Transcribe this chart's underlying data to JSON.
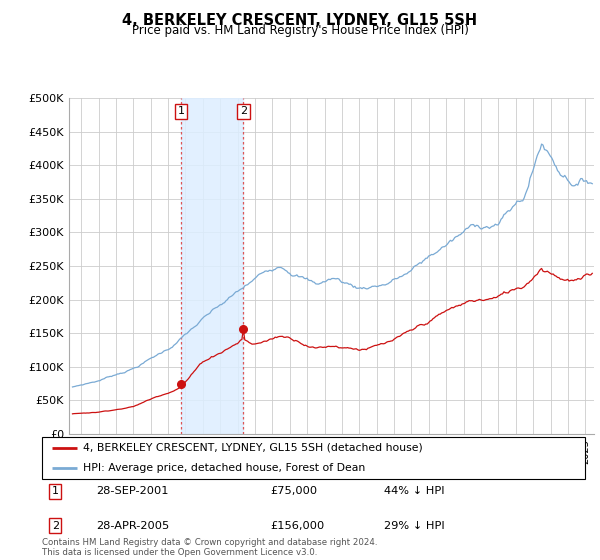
{
  "title": "4, BERKELEY CRESCENT, LYDNEY, GL15 5SH",
  "subtitle": "Price paid vs. HM Land Registry's House Price Index (HPI)",
  "ylim": [
    0,
    500000
  ],
  "yticks": [
    0,
    50000,
    100000,
    150000,
    200000,
    250000,
    300000,
    350000,
    400000,
    450000,
    500000
  ],
  "ytick_labels": [
    "£0",
    "£50K",
    "£100K",
    "£150K",
    "£200K",
    "£250K",
    "£300K",
    "£350K",
    "£400K",
    "£450K",
    "£500K"
  ],
  "xlim_start": 1995.3,
  "xlim_end": 2025.5,
  "hpi_color": "#7aaad4",
  "price_color": "#cc1111",
  "marker_color": "#cc1111",
  "shade_color": "#ddeeff",
  "transaction1": {
    "date_num": 2001.74,
    "price": 75000,
    "label": "1",
    "pct": "44% ↓ HPI",
    "date_str": "28-SEP-2001",
    "price_str": "£75,000"
  },
  "transaction2": {
    "date_num": 2005.32,
    "price": 156000,
    "label": "2",
    "pct": "29% ↓ HPI",
    "date_str": "28-APR-2005",
    "price_str": "£156,000"
  },
  "legend_line1": "4, BERKELEY CRESCENT, LYDNEY, GL15 5SH (detached house)",
  "legend_line2": "HPI: Average price, detached house, Forest of Dean",
  "footnote": "Contains HM Land Registry data © Crown copyright and database right 2024.\nThis data is licensed under the Open Government Licence v3.0.",
  "background_color": "#ffffff",
  "grid_color": "#cccccc"
}
